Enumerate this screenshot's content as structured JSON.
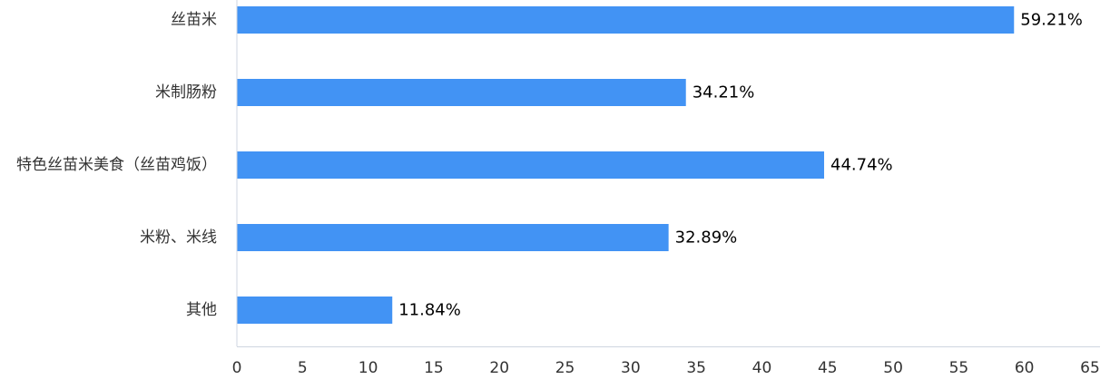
{
  "chart_data": {
    "type": "bar",
    "orientation": "horizontal",
    "categories": [
      "丝苗米",
      "米制肠粉",
      "特色丝苗米美食（丝苗鸡饭）",
      "米粉、米线",
      "其他"
    ],
    "values": [
      59.21,
      34.21,
      44.74,
      32.89,
      11.84
    ],
    "data_labels": [
      "59.21%",
      "34.21%",
      "44.74%",
      "32.89%",
      "11.84%"
    ],
    "title": "",
    "xlabel": "",
    "ylabel": "",
    "xlim": [
      0,
      65
    ],
    "x_ticks": [
      "0",
      "5",
      "10",
      "15",
      "20",
      "25",
      "30",
      "35",
      "40",
      "45",
      "50",
      "55",
      "60",
      "65"
    ],
    "grid": false,
    "legend": "none",
    "bar_color": "#4293F4",
    "axis_color": "#CFD5E0"
  }
}
